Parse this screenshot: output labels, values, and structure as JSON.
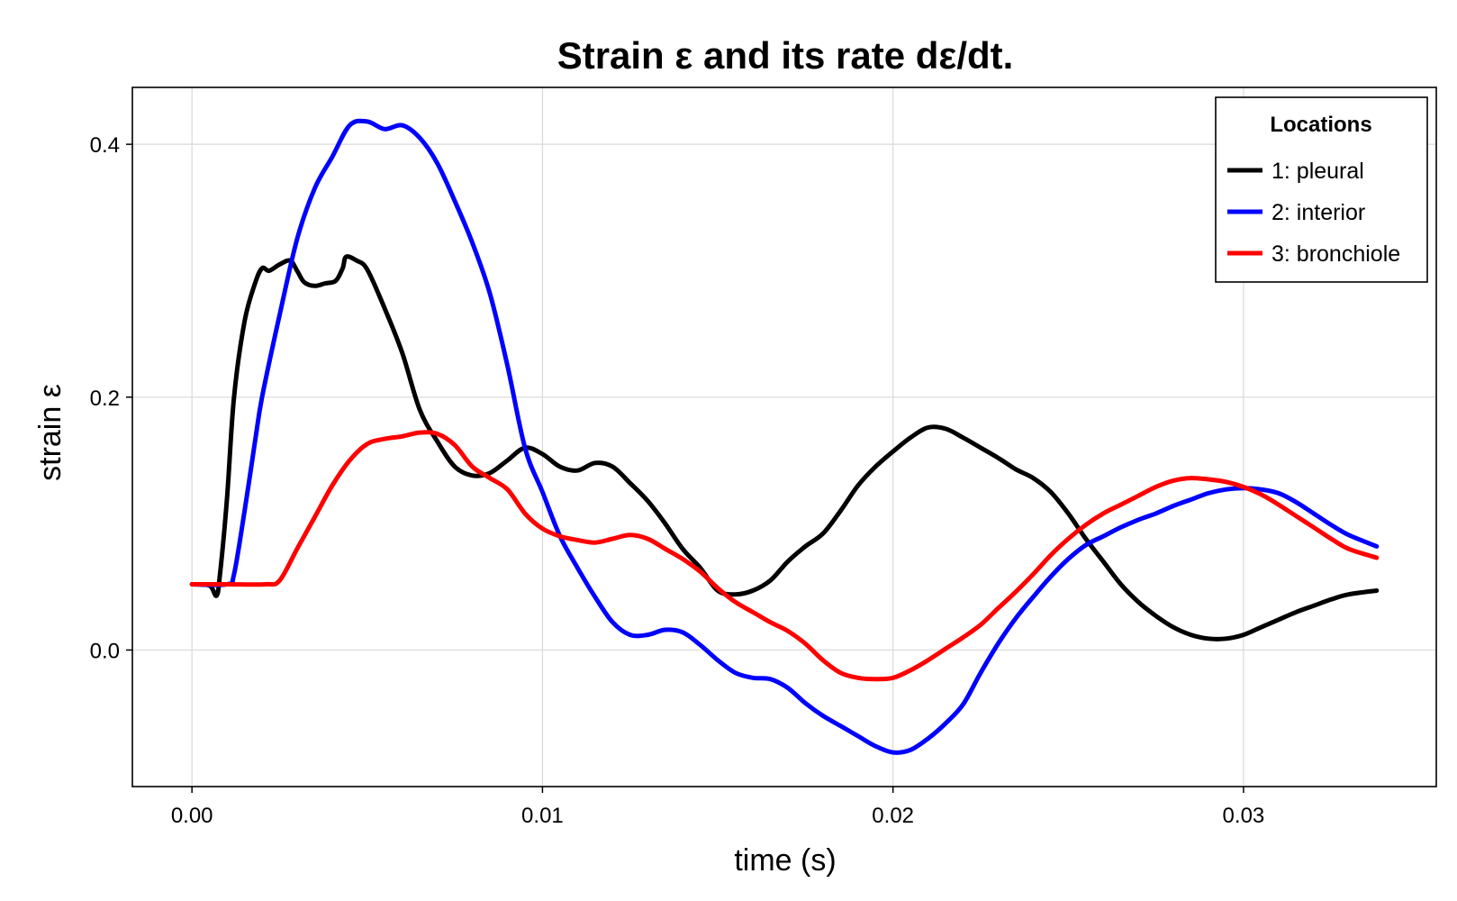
{
  "chart_data": {
    "type": "line",
    "title": "Strain ε and its rate dε/dt.",
    "xlabel": "time (s)",
    "ylabel": "strain ε",
    "xlim": [
      -0.0017,
      0.0355
    ],
    "ylim": [
      -0.108,
      0.445
    ],
    "xticks": [
      0.0,
      0.01,
      0.02,
      0.03
    ],
    "xtick_labels": [
      "0.00",
      "0.01",
      "0.02",
      "0.03"
    ],
    "yticks": [
      0.0,
      0.2,
      0.4
    ],
    "ytick_labels": [
      "0.0",
      "0.2",
      "0.4"
    ],
    "grid": true,
    "legend": {
      "title": "Locations",
      "position": "top-right"
    },
    "series": [
      {
        "name": "1: pleural",
        "color": "#000000",
        "points": [
          [
            0.0,
            0.052
          ],
          [
            0.0005,
            0.051
          ],
          [
            0.0007,
            0.043
          ],
          [
            0.0008,
            0.06
          ],
          [
            0.001,
            0.12
          ],
          [
            0.0012,
            0.2
          ],
          [
            0.0015,
            0.26
          ],
          [
            0.0018,
            0.29
          ],
          [
            0.002,
            0.302
          ],
          [
            0.0022,
            0.3
          ],
          [
            0.0025,
            0.305
          ],
          [
            0.0028,
            0.308
          ],
          [
            0.003,
            0.3
          ],
          [
            0.0032,
            0.291
          ],
          [
            0.0035,
            0.288
          ],
          [
            0.0038,
            0.29
          ],
          [
            0.0041,
            0.292
          ],
          [
            0.0043,
            0.302
          ],
          [
            0.0044,
            0.311
          ],
          [
            0.0047,
            0.308
          ],
          [
            0.005,
            0.301
          ],
          [
            0.0055,
            0.27
          ],
          [
            0.006,
            0.235
          ],
          [
            0.0065,
            0.19
          ],
          [
            0.007,
            0.165
          ],
          [
            0.0075,
            0.145
          ],
          [
            0.008,
            0.138
          ],
          [
            0.0085,
            0.14
          ],
          [
            0.009,
            0.15
          ],
          [
            0.0095,
            0.16
          ],
          [
            0.01,
            0.155
          ],
          [
            0.0105,
            0.145
          ],
          [
            0.011,
            0.142
          ],
          [
            0.0115,
            0.148
          ],
          [
            0.012,
            0.145
          ],
          [
            0.0125,
            0.132
          ],
          [
            0.013,
            0.118
          ],
          [
            0.0135,
            0.1
          ],
          [
            0.014,
            0.08
          ],
          [
            0.0145,
            0.065
          ],
          [
            0.015,
            0.047
          ],
          [
            0.0155,
            0.044
          ],
          [
            0.016,
            0.047
          ],
          [
            0.0165,
            0.055
          ],
          [
            0.017,
            0.07
          ],
          [
            0.0175,
            0.082
          ],
          [
            0.018,
            0.092
          ],
          [
            0.0185,
            0.11
          ],
          [
            0.019,
            0.13
          ],
          [
            0.0195,
            0.145
          ],
          [
            0.02,
            0.157
          ],
          [
            0.0205,
            0.168
          ],
          [
            0.021,
            0.176
          ],
          [
            0.0215,
            0.175
          ],
          [
            0.022,
            0.168
          ],
          [
            0.0225,
            0.16
          ],
          [
            0.023,
            0.152
          ],
          [
            0.0235,
            0.143
          ],
          [
            0.024,
            0.136
          ],
          [
            0.0245,
            0.125
          ],
          [
            0.025,
            0.108
          ],
          [
            0.0255,
            0.088
          ],
          [
            0.026,
            0.07
          ],
          [
            0.0265,
            0.052
          ],
          [
            0.027,
            0.038
          ],
          [
            0.0275,
            0.027
          ],
          [
            0.028,
            0.018
          ],
          [
            0.0285,
            0.012
          ],
          [
            0.029,
            0.009
          ],
          [
            0.0295,
            0.009
          ],
          [
            0.03,
            0.012
          ],
          [
            0.0305,
            0.018
          ],
          [
            0.031,
            0.024
          ],
          [
            0.0315,
            0.03
          ],
          [
            0.032,
            0.035
          ],
          [
            0.0325,
            0.04
          ],
          [
            0.033,
            0.044
          ],
          [
            0.0338,
            0.047
          ]
        ]
      },
      {
        "name": "2: interior",
        "color": "#0000ff",
        "points": [
          [
            0.0,
            0.052
          ],
          [
            0.001,
            0.052
          ],
          [
            0.0012,
            0.06
          ],
          [
            0.0015,
            0.11
          ],
          [
            0.0018,
            0.165
          ],
          [
            0.002,
            0.2
          ],
          [
            0.0025,
            0.265
          ],
          [
            0.003,
            0.325
          ],
          [
            0.0035,
            0.365
          ],
          [
            0.004,
            0.39
          ],
          [
            0.0045,
            0.415
          ],
          [
            0.005,
            0.418
          ],
          [
            0.0055,
            0.412
          ],
          [
            0.006,
            0.415
          ],
          [
            0.0065,
            0.405
          ],
          [
            0.007,
            0.385
          ],
          [
            0.0075,
            0.355
          ],
          [
            0.008,
            0.322
          ],
          [
            0.0085,
            0.282
          ],
          [
            0.009,
            0.225
          ],
          [
            0.0095,
            0.16
          ],
          [
            0.01,
            0.125
          ],
          [
            0.0105,
            0.09
          ],
          [
            0.011,
            0.065
          ],
          [
            0.0115,
            0.042
          ],
          [
            0.012,
            0.022
          ],
          [
            0.0125,
            0.012
          ],
          [
            0.013,
            0.012
          ],
          [
            0.0135,
            0.016
          ],
          [
            0.014,
            0.014
          ],
          [
            0.0145,
            0.004
          ],
          [
            0.015,
            -0.008
          ],
          [
            0.0155,
            -0.018
          ],
          [
            0.016,
            -0.022
          ],
          [
            0.0165,
            -0.023
          ],
          [
            0.017,
            -0.03
          ],
          [
            0.0175,
            -0.042
          ],
          [
            0.018,
            -0.052
          ],
          [
            0.0185,
            -0.06
          ],
          [
            0.019,
            -0.068
          ],
          [
            0.0195,
            -0.076
          ],
          [
            0.02,
            -0.081
          ],
          [
            0.0205,
            -0.079
          ],
          [
            0.021,
            -0.07
          ],
          [
            0.0215,
            -0.058
          ],
          [
            0.022,
            -0.043
          ],
          [
            0.0225,
            -0.018
          ],
          [
            0.023,
            0.005
          ],
          [
            0.0235,
            0.025
          ],
          [
            0.024,
            0.042
          ],
          [
            0.0245,
            0.058
          ],
          [
            0.025,
            0.072
          ],
          [
            0.0255,
            0.083
          ],
          [
            0.026,
            0.09
          ],
          [
            0.0265,
            0.097
          ],
          [
            0.027,
            0.103
          ],
          [
            0.0275,
            0.108
          ],
          [
            0.028,
            0.114
          ],
          [
            0.0285,
            0.119
          ],
          [
            0.029,
            0.124
          ],
          [
            0.0295,
            0.127
          ],
          [
            0.03,
            0.128
          ],
          [
            0.0305,
            0.127
          ],
          [
            0.031,
            0.124
          ],
          [
            0.0315,
            0.117
          ],
          [
            0.032,
            0.108
          ],
          [
            0.0325,
            0.099
          ],
          [
            0.033,
            0.091
          ],
          [
            0.0338,
            0.082
          ]
        ]
      },
      {
        "name": "3: bronchiole",
        "color": "#ff0000",
        "points": [
          [
            0.0,
            0.052
          ],
          [
            0.001,
            0.052
          ],
          [
            0.0021,
            0.052
          ],
          [
            0.0025,
            0.055
          ],
          [
            0.003,
            0.08
          ],
          [
            0.0035,
            0.105
          ],
          [
            0.004,
            0.13
          ],
          [
            0.0045,
            0.15
          ],
          [
            0.005,
            0.163
          ],
          [
            0.0055,
            0.167
          ],
          [
            0.006,
            0.169
          ],
          [
            0.0065,
            0.172
          ],
          [
            0.007,
            0.171
          ],
          [
            0.0075,
            0.162
          ],
          [
            0.008,
            0.145
          ],
          [
            0.0085,
            0.136
          ],
          [
            0.009,
            0.127
          ],
          [
            0.0095,
            0.108
          ],
          [
            0.01,
            0.096
          ],
          [
            0.0105,
            0.09
          ],
          [
            0.011,
            0.087
          ],
          [
            0.0115,
            0.085
          ],
          [
            0.012,
            0.088
          ],
          [
            0.0125,
            0.091
          ],
          [
            0.013,
            0.088
          ],
          [
            0.0135,
            0.08
          ],
          [
            0.014,
            0.072
          ],
          [
            0.0145,
            0.062
          ],
          [
            0.015,
            0.049
          ],
          [
            0.0155,
            0.038
          ],
          [
            0.016,
            0.03
          ],
          [
            0.0165,
            0.022
          ],
          [
            0.017,
            0.015
          ],
          [
            0.0175,
            0.005
          ],
          [
            0.018,
            -0.008
          ],
          [
            0.0185,
            -0.018
          ],
          [
            0.019,
            -0.022
          ],
          [
            0.0195,
            -0.023
          ],
          [
            0.02,
            -0.022
          ],
          [
            0.0205,
            -0.016
          ],
          [
            0.021,
            -0.008
          ],
          [
            0.0215,
            0.001
          ],
          [
            0.022,
            0.01
          ],
          [
            0.0225,
            0.02
          ],
          [
            0.023,
            0.033
          ],
          [
            0.0235,
            0.046
          ],
          [
            0.024,
            0.06
          ],
          [
            0.0245,
            0.075
          ],
          [
            0.025,
            0.088
          ],
          [
            0.0255,
            0.099
          ],
          [
            0.026,
            0.108
          ],
          [
            0.0265,
            0.115
          ],
          [
            0.027,
            0.122
          ],
          [
            0.0275,
            0.129
          ],
          [
            0.028,
            0.134
          ],
          [
            0.0285,
            0.136
          ],
          [
            0.029,
            0.135
          ],
          [
            0.0295,
            0.133
          ],
          [
            0.03,
            0.129
          ],
          [
            0.0305,
            0.123
          ],
          [
            0.031,
            0.115
          ],
          [
            0.0315,
            0.106
          ],
          [
            0.032,
            0.097
          ],
          [
            0.0325,
            0.088
          ],
          [
            0.033,
            0.08
          ],
          [
            0.0338,
            0.073
          ]
        ]
      }
    ]
  }
}
